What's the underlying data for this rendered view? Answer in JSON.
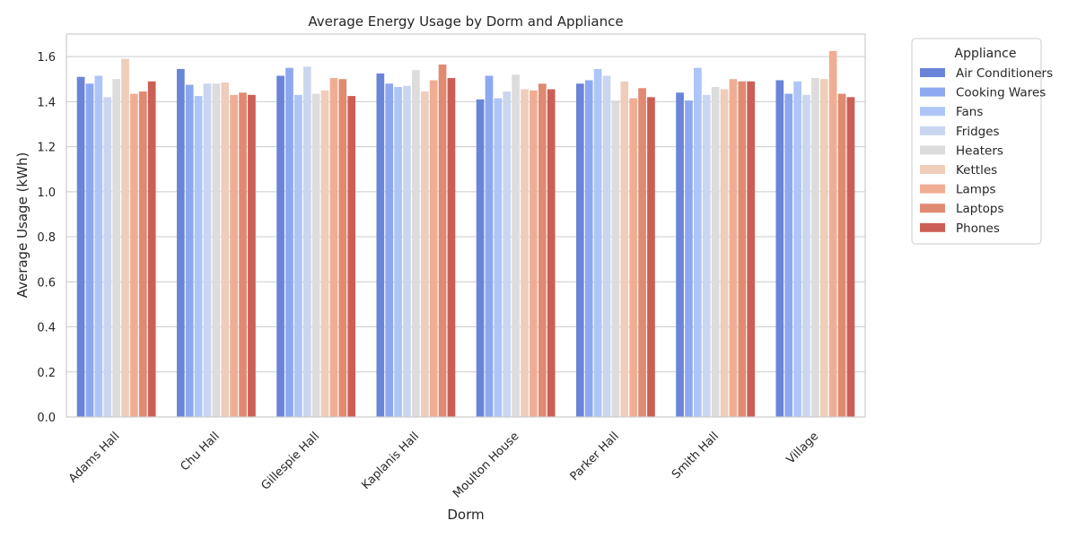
{
  "chart_data": {
    "type": "bar",
    "title": "Average Energy Usage by Dorm and Appliance",
    "xlabel": "Dorm",
    "ylabel": "Average Usage (kWh)",
    "ylim": [
      0,
      1.7
    ],
    "yticks": [
      "0.0",
      "0.2",
      "0.4",
      "0.6",
      "0.8",
      "1.0",
      "1.2",
      "1.4",
      "1.6"
    ],
    "grid": "horizontal",
    "legend_title": "Appliance",
    "legend_position": "outside-right",
    "categories": [
      "Adams Hall",
      "Chu Hall",
      "Gillespie Hall",
      "Kaplanis Hall",
      "Moulton House",
      "Parker Hall",
      "Smith Hall",
      "Village"
    ],
    "series": [
      {
        "name": "Air Conditioners",
        "color": "#6a84d8",
        "values": [
          1.51,
          1.545,
          1.515,
          1.525,
          1.41,
          1.48,
          1.44,
          1.495
        ]
      },
      {
        "name": "Cooking Wares",
        "color": "#8ea8f0",
        "values": [
          1.48,
          1.475,
          1.55,
          1.48,
          1.515,
          1.495,
          1.405,
          1.435
        ]
      },
      {
        "name": "Fans",
        "color": "#aec5f7",
        "values": [
          1.515,
          1.425,
          1.43,
          1.465,
          1.415,
          1.545,
          1.55,
          1.49
        ]
      },
      {
        "name": "Fridges",
        "color": "#cad6ef",
        "values": [
          1.42,
          1.48,
          1.555,
          1.47,
          1.445,
          1.515,
          1.43,
          1.43
        ]
      },
      {
        "name": "Heaters",
        "color": "#dcdcdc",
        "values": [
          1.5,
          1.48,
          1.435,
          1.54,
          1.52,
          1.405,
          1.465,
          1.505
        ]
      },
      {
        "name": "Kettles",
        "color": "#efcdbb",
        "values": [
          1.59,
          1.485,
          1.45,
          1.445,
          1.455,
          1.49,
          1.455,
          1.5
        ]
      },
      {
        "name": "Lamps",
        "color": "#efae94",
        "values": [
          1.435,
          1.43,
          1.505,
          1.495,
          1.45,
          1.415,
          1.5,
          1.625
        ]
      },
      {
        "name": "Laptops",
        "color": "#df8a71",
        "values": [
          1.445,
          1.44,
          1.5,
          1.565,
          1.48,
          1.46,
          1.49,
          1.435
        ]
      },
      {
        "name": "Phones",
        "color": "#cc5f55",
        "values": [
          1.49,
          1.43,
          1.425,
          1.505,
          1.455,
          1.42,
          1.49,
          1.42
        ]
      }
    ]
  }
}
